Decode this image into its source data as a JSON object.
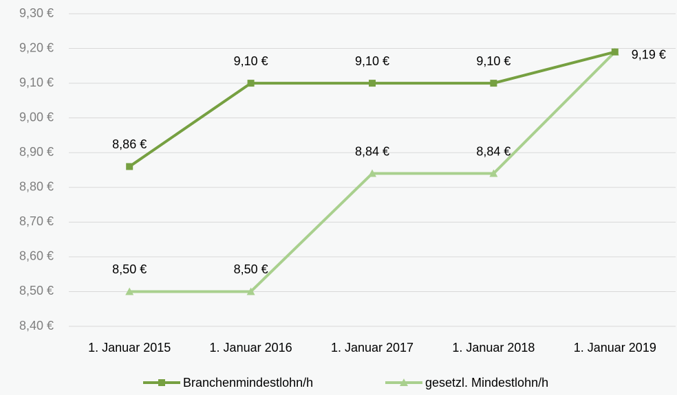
{
  "chart_data": {
    "type": "line",
    "categories": [
      "1. Januar 2015",
      "1. Januar 2016",
      "1. Januar 2017",
      "1. Januar 2018",
      "1. Januar 2019"
    ],
    "series": [
      {
        "name": "Branchenmindestlohn/h",
        "color": "#76a041",
        "marker": "square",
        "values": [
          8.86,
          9.1,
          9.1,
          9.1,
          9.19
        ],
        "value_labels": [
          "8,86 €",
          "9,10 €",
          "9,10 €",
          "9,10 €",
          "9,19 €"
        ]
      },
      {
        "name": "gesetzl. Mindestlohn/h",
        "color": "#a9d08e",
        "marker": "triangle",
        "values": [
          8.5,
          8.5,
          8.84,
          8.84,
          9.19
        ],
        "value_labels": [
          "8,50 €",
          "8,50 €",
          "8,84 €",
          "8,84 €",
          null
        ]
      }
    ],
    "ylim": [
      8.4,
      9.3
    ],
    "yticks": [
      {
        "value": 8.4,
        "label": "8,40 €"
      },
      {
        "value": 8.5,
        "label": "8,50 €"
      },
      {
        "value": 8.6,
        "label": "8,60 €"
      },
      {
        "value": 8.7,
        "label": "8,70 €"
      },
      {
        "value": 8.8,
        "label": "8,80 €"
      },
      {
        "value": 8.9,
        "label": "8,90 €"
      },
      {
        "value": 9.0,
        "label": "9,00 €"
      },
      {
        "value": 9.1,
        "label": "9,10 €"
      },
      {
        "value": 9.2,
        "label": "9,20 €"
      },
      {
        "value": 9.3,
        "label": "9,30 €"
      }
    ],
    "grid": true,
    "legend": "bottom"
  }
}
